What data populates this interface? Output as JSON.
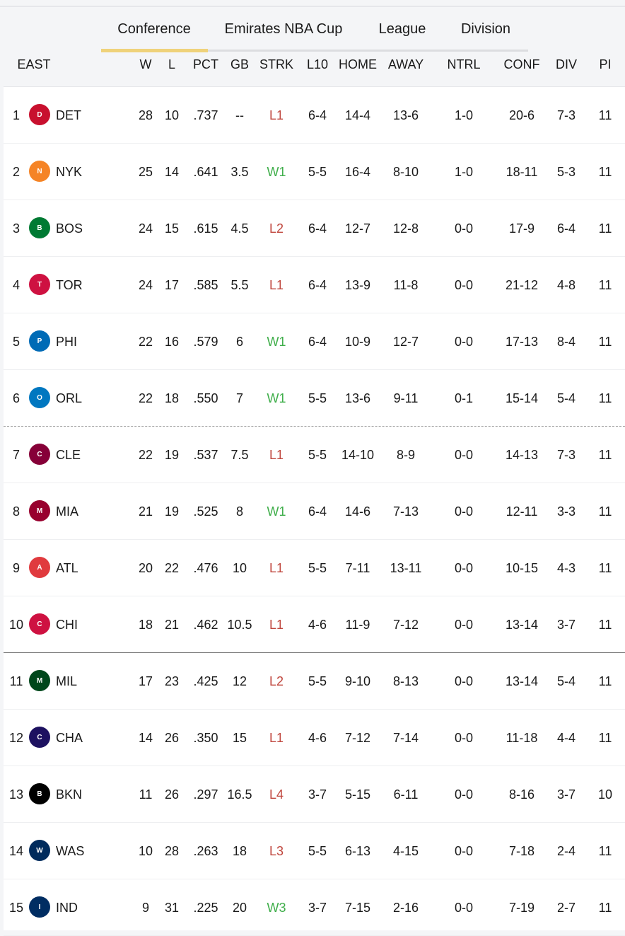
{
  "tabs": [
    {
      "label": "Conference",
      "active": true
    },
    {
      "label": "Emirates NBA Cup"
    },
    {
      "label": "League"
    },
    {
      "label": "Division"
    }
  ],
  "columns": [
    "EAST",
    "W",
    "L",
    "PCT",
    "GB",
    "STRK",
    "L10",
    "HOME",
    "AWAY",
    "NTRL",
    "CONF",
    "DIV",
    "PI"
  ],
  "colors": {
    "win": "#3fae4a",
    "loss": "#c0473e",
    "tab_active": "#efd27a"
  },
  "rows": [
    {
      "rank": "1",
      "team": "DET",
      "logo": "pistons-logo",
      "logo_color": "#c8102e",
      "w": "28",
      "l": "10",
      "pct": ".737",
      "gb": "--",
      "strk": "L1",
      "l10": "6-4",
      "home": "14-4",
      "away": "13-6",
      "ntrl": "1-0",
      "conf": "20-6",
      "div": "7-3",
      "pi": "11"
    },
    {
      "rank": "2",
      "team": "NYK",
      "logo": "knicks-logo",
      "logo_color": "#f58426",
      "w": "25",
      "l": "14",
      "pct": ".641",
      "gb": "3.5",
      "strk": "W1",
      "l10": "5-5",
      "home": "16-4",
      "away": "8-10",
      "ntrl": "1-0",
      "conf": "18-11",
      "div": "5-3",
      "pi": "11"
    },
    {
      "rank": "3",
      "team": "BOS",
      "logo": "celtics-logo",
      "logo_color": "#007a33",
      "w": "24",
      "l": "15",
      "pct": ".615",
      "gb": "4.5",
      "strk": "L2",
      "l10": "6-4",
      "home": "12-7",
      "away": "12-8",
      "ntrl": "0-0",
      "conf": "17-9",
      "div": "6-4",
      "pi": "11"
    },
    {
      "rank": "4",
      "team": "TOR",
      "logo": "raptors-logo",
      "logo_color": "#ce1141",
      "w": "24",
      "l": "17",
      "pct": ".585",
      "gb": "5.5",
      "strk": "L1",
      "l10": "6-4",
      "home": "13-9",
      "away": "11-8",
      "ntrl": "0-0",
      "conf": "21-12",
      "div": "4-8",
      "pi": "11"
    },
    {
      "rank": "5",
      "team": "PHI",
      "logo": "76ers-logo",
      "logo_color": "#006bb6",
      "w": "22",
      "l": "16",
      "pct": ".579",
      "gb": "6",
      "strk": "W1",
      "l10": "6-4",
      "home": "10-9",
      "away": "12-7",
      "ntrl": "0-0",
      "conf": "17-13",
      "div": "8-4",
      "pi": "11"
    },
    {
      "rank": "6",
      "team": "ORL",
      "logo": "magic-logo",
      "logo_color": "#0077c0",
      "w": "22",
      "l": "18",
      "pct": ".550",
      "gb": "7",
      "strk": "W1",
      "l10": "5-5",
      "home": "13-6",
      "away": "9-11",
      "ntrl": "0-1",
      "conf": "15-14",
      "div": "5-4",
      "pi": "11"
    },
    {
      "rank": "7",
      "team": "CLE",
      "logo": "cavaliers-logo",
      "logo_color": "#860038",
      "w": "22",
      "l": "19",
      "pct": ".537",
      "gb": "7.5",
      "strk": "L1",
      "l10": "5-5",
      "home": "14-10",
      "away": "8-9",
      "ntrl": "0-0",
      "conf": "14-13",
      "div": "7-3",
      "pi": "11"
    },
    {
      "rank": "8",
      "team": "MIA",
      "logo": "heat-logo",
      "logo_color": "#98002e",
      "w": "21",
      "l": "19",
      "pct": ".525",
      "gb": "8",
      "strk": "W1",
      "l10": "6-4",
      "home": "14-6",
      "away": "7-13",
      "ntrl": "0-0",
      "conf": "12-11",
      "div": "3-3",
      "pi": "11"
    },
    {
      "rank": "9",
      "team": "ATL",
      "logo": "hawks-logo",
      "logo_color": "#e03a3e",
      "w": "20",
      "l": "22",
      "pct": ".476",
      "gb": "10",
      "strk": "L1",
      "l10": "5-5",
      "home": "7-11",
      "away": "13-11",
      "ntrl": "0-0",
      "conf": "10-15",
      "div": "4-3",
      "pi": "11"
    },
    {
      "rank": "10",
      "team": "CHI",
      "logo": "bulls-logo",
      "logo_color": "#ce1141",
      "w": "18",
      "l": "21",
      "pct": ".462",
      "gb": "10.5",
      "strk": "L1",
      "l10": "4-6",
      "home": "11-9",
      "away": "7-12",
      "ntrl": "0-0",
      "conf": "13-14",
      "div": "3-7",
      "pi": "11"
    },
    {
      "rank": "11",
      "team": "MIL",
      "logo": "bucks-logo",
      "logo_color": "#00471b",
      "w": "17",
      "l": "23",
      "pct": ".425",
      "gb": "12",
      "strk": "L2",
      "l10": "5-5",
      "home": "9-10",
      "away": "8-13",
      "ntrl": "0-0",
      "conf": "13-14",
      "div": "5-4",
      "pi": "11"
    },
    {
      "rank": "12",
      "team": "CHA",
      "logo": "hornets-logo",
      "logo_color": "#1d1160",
      "w": "14",
      "l": "26",
      "pct": ".350",
      "gb": "15",
      "strk": "L1",
      "l10": "4-6",
      "home": "7-12",
      "away": "7-14",
      "ntrl": "0-0",
      "conf": "11-18",
      "div": "4-4",
      "pi": "11"
    },
    {
      "rank": "13",
      "team": "BKN",
      "logo": "nets-logo",
      "logo_color": "#000000",
      "w": "11",
      "l": "26",
      "pct": ".297",
      "gb": "16.5",
      "strk": "L4",
      "l10": "3-7",
      "home": "5-15",
      "away": "6-11",
      "ntrl": "0-0",
      "conf": "8-16",
      "div": "3-7",
      "pi": "10"
    },
    {
      "rank": "14",
      "team": "WAS",
      "logo": "wizards-logo",
      "logo_color": "#002b5c",
      "w": "10",
      "l": "28",
      "pct": ".263",
      "gb": "18",
      "strk": "L3",
      "l10": "5-5",
      "home": "6-13",
      "away": "4-15",
      "ntrl": "0-0",
      "conf": "7-18",
      "div": "2-4",
      "pi": "11"
    },
    {
      "rank": "15",
      "team": "IND",
      "logo": "pacers-logo",
      "logo_color": "#002d62",
      "w": "9",
      "l": "31",
      "pct": ".225",
      "gb": "20",
      "strk": "W3",
      "l10": "3-7",
      "home": "7-15",
      "away": "2-16",
      "ntrl": "0-0",
      "conf": "7-19",
      "div": "2-7",
      "pi": "11"
    }
  ]
}
